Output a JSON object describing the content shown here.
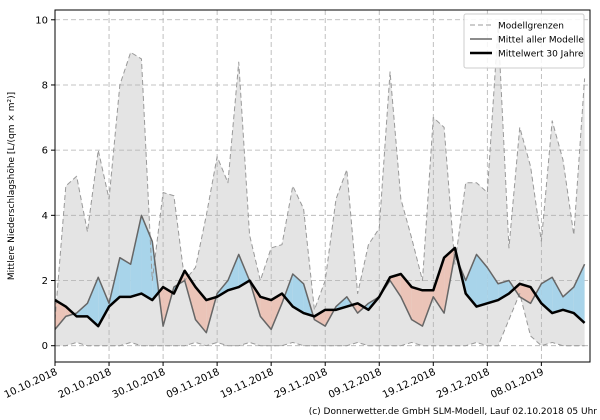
{
  "chart_data": {
    "type": "line",
    "y_label": "Mittlere Niederschlagshöhe [L/(qm × m²)]",
    "footer": "(c) Donnerwetter.de GmbH SLM-Modell, Lauf 02.10.2018 05 Uhr",
    "x": [
      "2018-10-10",
      "2018-10-12",
      "2018-10-14",
      "2018-10-16",
      "2018-10-18",
      "2018-10-20",
      "2018-10-22",
      "2018-10-24",
      "2018-10-26",
      "2018-10-28",
      "2018-10-30",
      "2018-11-01",
      "2018-11-03",
      "2018-11-05",
      "2018-11-07",
      "2018-11-09",
      "2018-11-11",
      "2018-11-13",
      "2018-11-15",
      "2018-11-17",
      "2018-11-19",
      "2018-11-21",
      "2018-11-23",
      "2018-11-25",
      "2018-11-27",
      "2018-11-29",
      "2018-12-01",
      "2018-12-03",
      "2018-12-05",
      "2018-12-07",
      "2018-12-09",
      "2018-12-11",
      "2018-12-13",
      "2018-12-15",
      "2018-12-17",
      "2018-12-19",
      "2018-12-21",
      "2018-12-23",
      "2018-12-25",
      "2018-12-27",
      "2018-12-29",
      "2018-12-31",
      "2019-01-02",
      "2019-01-04",
      "2019-01-06",
      "2019-01-08",
      "2019-01-10",
      "2019-01-12",
      "2019-01-14",
      "2019-01-16"
    ],
    "xlim": [
      "2018-10-10",
      "2019-01-17"
    ],
    "xticks": [
      {
        "value": "2018-10-10",
        "label": "10.10.2018"
      },
      {
        "value": "2018-10-20",
        "label": "20.10.2018"
      },
      {
        "value": "2018-10-30",
        "label": "30.10.2018"
      },
      {
        "value": "2018-11-09",
        "label": "09.11.2018"
      },
      {
        "value": "2018-11-19",
        "label": "19.11.2018"
      },
      {
        "value": "2018-11-29",
        "label": "29.11.2018"
      },
      {
        "value": "2018-12-09",
        "label": "09.12.2018"
      },
      {
        "value": "2018-12-19",
        "label": "19.12.2018"
      },
      {
        "value": "2018-12-29",
        "label": "29.12.2018"
      },
      {
        "value": "2019-01-08",
        "label": "08.01.2019"
      }
    ],
    "ylim": [
      -0.5,
      10.3
    ],
    "yticks": [
      0,
      2,
      4,
      6,
      8,
      10
    ],
    "grid": true,
    "legend": "upper right",
    "band_color": "#e4e4e4",
    "above_color": "#a8d4ea",
    "below_color": "#ebc4b8",
    "series": [
      {
        "name": "Modellgrenzen",
        "color": "#999999",
        "style": "dashed",
        "width": 1,
        "values": [
          0.8,
          4.9,
          5.2,
          3.5,
          6.0,
          4.5,
          8.0,
          9.0,
          8.8,
          2.0,
          4.7,
          4.6,
          2.0,
          2.4,
          4.0,
          5.8,
          5.0,
          8.7,
          3.4,
          2.0,
          3.0,
          3.1,
          4.9,
          4.2,
          1.1,
          2.0,
          4.5,
          5.4,
          1.6,
          3.1,
          3.6,
          8.4,
          4.5,
          3.3,
          2.0,
          7.0,
          6.7,
          2.5,
          5.0,
          5.0,
          4.7,
          9.8,
          3.0,
          6.7,
          5.5,
          3.2,
          6.9,
          5.7,
          3.4,
          8.2
        ]
      },
      {
        "name": null,
        "color": "#999999",
        "style": "dashed",
        "width": 1,
        "values": [
          0.0,
          0.0,
          0.1,
          0.0,
          0.0,
          0.0,
          0.0,
          0.1,
          0.0,
          0.0,
          0.0,
          0.0,
          0.0,
          0.1,
          0.0,
          0.1,
          0.0,
          0.0,
          0.1,
          0.0,
          0.0,
          0.0,
          0.1,
          0.0,
          0.0,
          0.0,
          0.0,
          0.0,
          0.1,
          0.0,
          0.0,
          0.0,
          0.0,
          0.1,
          0.0,
          0.0,
          0.0,
          0.0,
          0.0,
          0.1,
          0.0,
          0.0,
          0.8,
          1.6,
          0.3,
          0.0,
          0.1,
          0.0,
          0.0,
          0.0
        ]
      },
      {
        "name": "Mittel aller Modelle",
        "color": "#666666",
        "style": "solid",
        "width": 1.5,
        "values": [
          0.5,
          0.9,
          1.0,
          1.3,
          2.1,
          1.3,
          2.7,
          2.5,
          4.0,
          3.2,
          0.6,
          1.8,
          2.0,
          0.8,
          0.4,
          1.6,
          2.0,
          2.8,
          2.0,
          0.9,
          0.5,
          1.3,
          2.2,
          1.9,
          0.8,
          0.6,
          1.2,
          1.5,
          1.0,
          1.3,
          1.5,
          2.0,
          1.5,
          0.8,
          0.6,
          1.5,
          1.0,
          2.8,
          2.0,
          2.8,
          2.4,
          1.9,
          2.0,
          1.5,
          1.3,
          1.9,
          2.1,
          1.5,
          1.8,
          2.5
        ]
      },
      {
        "name": "Mittelwert 30 Jahre",
        "color": "#000000",
        "style": "solid",
        "width": 2.5,
        "values": [
          1.4,
          1.2,
          0.9,
          0.9,
          0.6,
          1.2,
          1.5,
          1.5,
          1.6,
          1.4,
          1.8,
          1.6,
          2.3,
          1.8,
          1.4,
          1.5,
          1.7,
          1.8,
          2.0,
          1.5,
          1.4,
          1.6,
          1.2,
          1.0,
          0.9,
          1.1,
          1.1,
          1.2,
          1.3,
          1.1,
          1.5,
          2.1,
          2.2,
          1.8,
          1.7,
          1.7,
          2.7,
          3.0,
          1.6,
          1.2,
          1.3,
          1.4,
          1.6,
          1.9,
          1.8,
          1.3,
          1.0,
          1.1,
          1.0,
          0.7
        ]
      }
    ]
  }
}
